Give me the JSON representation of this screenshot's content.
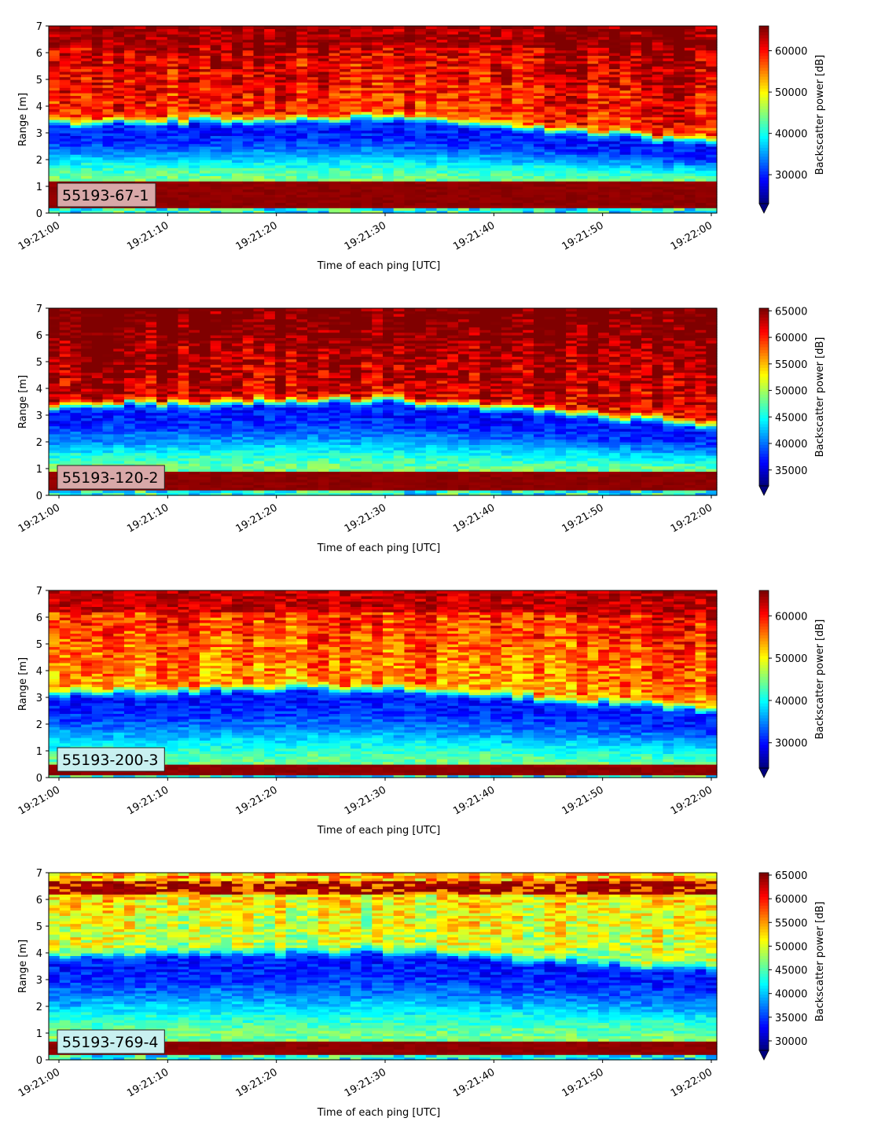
{
  "chart_data": [
    {
      "type": "heatmap",
      "label": "55193-67-1",
      "label_box_color": "#d8a8a8",
      "xlabel": "Time of each ping [UTC]",
      "ylabel": "Range [m]",
      "ylim": [
        0,
        7
      ],
      "yticks": [
        "0",
        "1",
        "2",
        "3",
        "4",
        "5",
        "6",
        "7"
      ],
      "xlim": [
        "19:21:00",
        "19:22:00"
      ],
      "xticks": [
        "19:21:00",
        "19:21:10",
        "19:21:20",
        "19:21:30",
        "19:21:40",
        "19:21:50",
        "19:22:00"
      ],
      "colorbar": {
        "label": "Backscatter power [dB]",
        "min": 23000,
        "max": 66000,
        "extend": "min",
        "ticks": [
          "30000",
          "40000",
          "50000",
          "60000"
        ],
        "tick_values": [
          30000,
          40000,
          50000,
          60000
        ]
      },
      "colormap": "jet",
      "layers": {
        "bottom_band": [
          0.2,
          1.15
        ],
        "dark_layer_top_start": 3.3,
        "dark_layer_top_mid": 3.5,
        "dark_layer_top_end": 2.6,
        "lower_green_mid": 1.5,
        "upper_level": "high"
      }
    },
    {
      "type": "heatmap",
      "label": "55193-120-2",
      "label_box_color": "#d8a8a8",
      "xlabel": "Time of each ping [UTC]",
      "ylabel": "Range [m]",
      "ylim": [
        0,
        7
      ],
      "yticks": [
        "0",
        "1",
        "2",
        "3",
        "4",
        "5",
        "6",
        "7"
      ],
      "xlim": [
        "19:21:00",
        "19:22:00"
      ],
      "xticks": [
        "19:21:00",
        "19:21:10",
        "19:21:20",
        "19:21:30",
        "19:21:40",
        "19:21:50",
        "19:22:00"
      ],
      "colorbar": {
        "label": "Backscatter power [dB]",
        "min": 32000,
        "max": 65500,
        "extend": "min",
        "ticks": [
          "35000",
          "40000",
          "45000",
          "50000",
          "55000",
          "60000",
          "65000"
        ],
        "tick_values": [
          35000,
          40000,
          45000,
          50000,
          55000,
          60000,
          65000
        ]
      },
      "colormap": "jet",
      "layers": {
        "bottom_band": [
          0.2,
          0.85
        ],
        "dark_layer_top_start": 3.3,
        "dark_layer_top_mid": 3.5,
        "dark_layer_top_end": 2.6,
        "lower_green_mid": 1.1,
        "upper_level": "very-high"
      }
    },
    {
      "type": "heatmap",
      "label": "55193-200-3",
      "label_box_color": "#c8f0f0",
      "xlabel": "Time of each ping [UTC]",
      "ylabel": "Range [m]",
      "ylim": [
        0,
        7
      ],
      "yticks": [
        "0",
        "1",
        "2",
        "3",
        "4",
        "5",
        "6",
        "7"
      ],
      "xlim": [
        "19:21:00",
        "19:22:00"
      ],
      "xticks": [
        "19:21:00",
        "19:21:10",
        "19:21:20",
        "19:21:30",
        "19:21:40",
        "19:21:50",
        "19:22:00"
      ],
      "colorbar": {
        "label": "Backscatter power [dB]",
        "min": 24000,
        "max": 66000,
        "extend": "min",
        "ticks": [
          "30000",
          "40000",
          "50000",
          "60000"
        ],
        "tick_values": [
          30000,
          40000,
          50000,
          60000
        ]
      },
      "colormap": "jet",
      "layers": {
        "bottom_band": [
          0.1,
          0.45
        ],
        "dark_layer_top_start": 3.1,
        "dark_layer_top_mid": 3.3,
        "dark_layer_top_end": 2.5,
        "lower_green_mid": 0.6,
        "upper_level": "mid-high"
      }
    },
    {
      "type": "heatmap",
      "label": "55193-769-4",
      "label_box_color": "#c8f0f0",
      "xlabel": "Time of each ping [UTC]",
      "ylabel": "Range [m]",
      "ylim": [
        0,
        7
      ],
      "yticks": [
        "0",
        "1",
        "2",
        "3",
        "4",
        "5",
        "6",
        "7"
      ],
      "xlim": [
        "19:21:00",
        "19:22:00"
      ],
      "xticks": [
        "19:21:00",
        "19:21:10",
        "19:21:20",
        "19:21:30",
        "19:21:40",
        "19:21:50",
        "19:22:00"
      ],
      "colorbar": {
        "label": "Backscatter power [dB]",
        "min": 28000,
        "max": 65500,
        "extend": "min",
        "ticks": [
          "30000",
          "35000",
          "40000",
          "45000",
          "50000",
          "55000",
          "60000",
          "65000"
        ],
        "tick_values": [
          30000,
          35000,
          40000,
          45000,
          50000,
          55000,
          60000,
          65000
        ]
      },
      "colormap": "jet",
      "layers": {
        "bottom_band": [
          0.25,
          0.65
        ],
        "dark_layer_top_start": 3.8,
        "dark_layer_top_mid": 4.0,
        "dark_layer_top_end": 3.3,
        "lower_green_mid": 1.0,
        "upper_level": "low"
      }
    }
  ]
}
